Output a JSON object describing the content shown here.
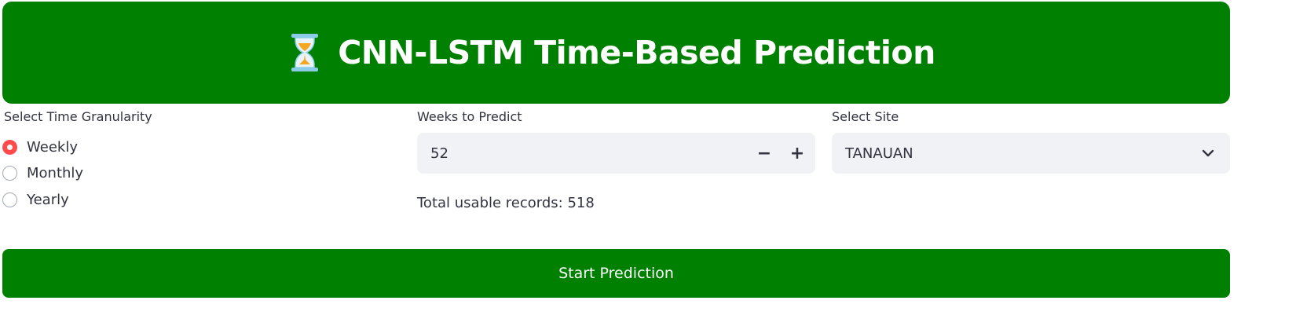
{
  "header": {
    "icon": "hourglass-icon",
    "title": "CNN-LSTM Time-Based Prediction"
  },
  "granularity": {
    "label": "Select Time Granularity",
    "options": [
      "Weekly",
      "Monthly",
      "Yearly"
    ],
    "selected": "Weekly"
  },
  "weeks": {
    "label": "Weeks to Predict",
    "value": "52",
    "minus_label": "−",
    "plus_label": "+"
  },
  "site": {
    "label": "Select Site",
    "value": "TANAUAN"
  },
  "records": {
    "text": "Total usable records: 518"
  },
  "actions": {
    "start_label": "Start Prediction"
  },
  "colors": {
    "brand_green": "#008000",
    "radio_accent": "#ff4b4b",
    "input_bg": "#f0f2f6",
    "text": "#31333f"
  }
}
